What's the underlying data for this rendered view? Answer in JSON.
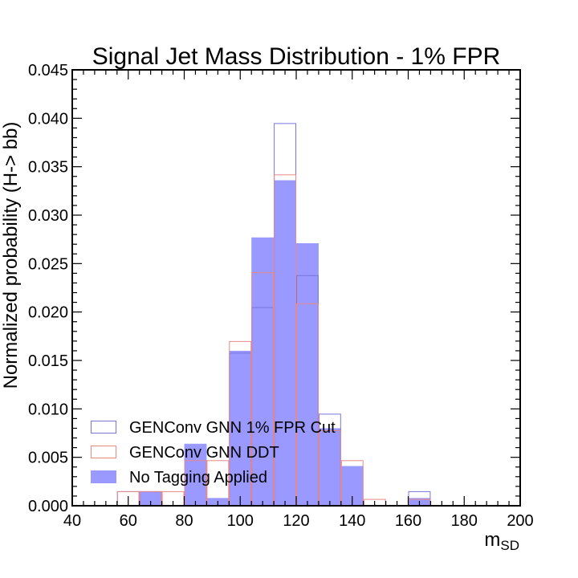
{
  "chart_data": {
    "type": "histogram",
    "title": "Signal Jet Mass Distribution - 1% FPR",
    "xlabel_main": "m",
    "xlabel_sub": "SD",
    "ylabel": "Normalized probability (H-> bb)",
    "xlim": [
      40,
      200
    ],
    "ylim": [
      0,
      0.045
    ],
    "x_ticks": [
      40,
      60,
      80,
      100,
      120,
      140,
      160,
      180,
      200
    ],
    "y_ticks": [
      0.0,
      0.005,
      0.01,
      0.015,
      0.02,
      0.025,
      0.03,
      0.035,
      0.04,
      0.045
    ],
    "y_tick_labels": [
      "0.000",
      "0.005",
      "0.010",
      "0.015",
      "0.020",
      "0.025",
      "0.030",
      "0.035",
      "0.040",
      "0.045"
    ],
    "bin_edges": [
      40,
      48,
      56,
      64,
      72,
      80,
      88,
      96,
      104,
      112,
      120,
      128,
      136,
      144,
      152,
      160,
      168,
      176,
      184,
      192,
      200
    ],
    "series": [
      {
        "name": "GENConv GNN 1% FPR Cut",
        "style": "step",
        "color": "#7777dd",
        "values": [
          0,
          0,
          0.0015,
          0.0015,
          0,
          0,
          0,
          0.0158,
          0.0205,
          0.0395,
          0.0238,
          0.0095,
          0,
          0,
          0,
          0.0015,
          0,
          0,
          0,
          0
        ]
      },
      {
        "name": "GENConv GNN DDT",
        "style": "step",
        "color": "#e88888",
        "values": [
          0,
          0,
          0.0015,
          0.0015,
          0.0015,
          0.0047,
          0.0047,
          0.017,
          0.0241,
          0.0342,
          0.0209,
          0.0078,
          0.0047,
          0.0007,
          0,
          0.0007,
          0,
          0,
          0,
          0
        ]
      },
      {
        "name": "No Tagging Applied",
        "style": "filled",
        "color": "#9999ff",
        "values": [
          0,
          0,
          0,
          0.0015,
          0,
          0.0064,
          0.0008,
          0.016,
          0.0277,
          0.0336,
          0.0271,
          0.008,
          0.0041,
          0,
          0,
          0.0008,
          0,
          0,
          0,
          0
        ]
      }
    ],
    "legend_position": "lower-left",
    "grid": false
  }
}
